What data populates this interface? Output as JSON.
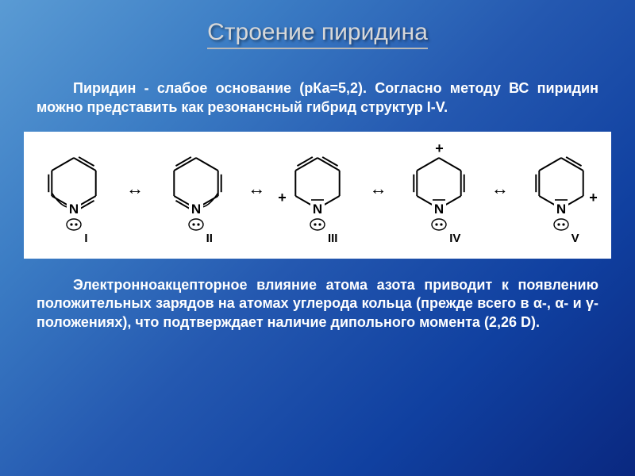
{
  "backgroundGradient": [
    "#5a9bd4",
    "#3b7cc4",
    "#2458b0",
    "#1040a0",
    "#0a2880"
  ],
  "title": "Строение пиридина",
  "paragraph1": "Пиридин - слабое основание (рКа=5,2). Согласно методу ВС пиридин можно представить как резонансный гибрид структур I-V.",
  "paragraph2": "Электронноакцепторное влияние атома азота приводит к появлению положительных зарядов на атомах углерода кольца (прежде всего в α-, α- и γ-положениях), что подтверждает наличие дипольного момента (2,26 D).",
  "diagram": {
    "background": "#ffffff",
    "strokeColor": "#000000",
    "romanLabels": [
      "I",
      "II",
      "III",
      "IV",
      "V"
    ],
    "arrowGlyph": "↔",
    "nitrogenLabel": "N",
    "lonePairGlyph": "••",
    "structures": [
      {
        "bonds": "neutral-left",
        "plusPos": null,
        "minusOnN": false,
        "curvedArrow": {
          "from": "left-bottom",
          "to": "N"
        }
      },
      {
        "bonds": "neutral-right",
        "plusPos": null,
        "minusOnN": false,
        "curvedArrow": {
          "from": "right-bottom",
          "to": "N"
        }
      },
      {
        "bonds": "anion-left",
        "plusPos": "ortho-left",
        "minusOnN": true,
        "curvedArrow": null
      },
      {
        "bonds": "anion-para",
        "plusPos": "para",
        "minusOnN": true,
        "curvedArrow": null
      },
      {
        "bonds": "anion-right",
        "plusPos": "ortho-right",
        "minusOnN": true,
        "curvedArrow": null
      }
    ]
  },
  "textColor": "#ffffff",
  "titleColor": "#d8d8d8",
  "titleFontSize": 30,
  "bodyFontSize": 18
}
